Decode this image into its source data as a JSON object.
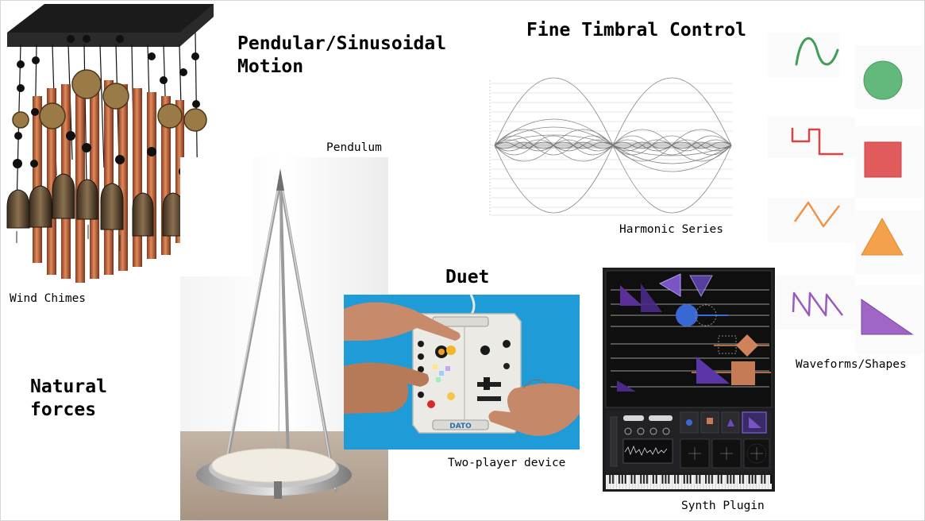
{
  "slide": {
    "headings": {
      "pendular_motion": "Pendular/Sinusoidal\nMotion",
      "fine_timbral_control": "Fine Timbral Control",
      "duet": "Duet",
      "natural_forces": "Natural\nforces"
    },
    "captions": {
      "wind_chimes": "Wind Chimes",
      "pendulum": "Pendulum",
      "harmonic_series": "Harmonic Series",
      "two_player_device": "Two-player device",
      "synth_plugin": "Synth Plugin",
      "waveforms_shapes": "Waveforms/Shapes"
    },
    "device_labels": {
      "logo": "DATO"
    },
    "waveforms": [
      {
        "wave": "sine",
        "shape": "circle",
        "color": "#3f9f57",
        "fill": "#63b97c"
      },
      {
        "wave": "square",
        "shape": "square",
        "color": "#d84446",
        "fill": "#e15a5c"
      },
      {
        "wave": "triangle",
        "shape": "triangle",
        "color": "#f0934a",
        "fill": "#f4a14c"
      },
      {
        "wave": "sawtooth",
        "shape": "right-triangle",
        "color": "#9b5ac2",
        "fill": "#a066c6"
      }
    ]
  }
}
